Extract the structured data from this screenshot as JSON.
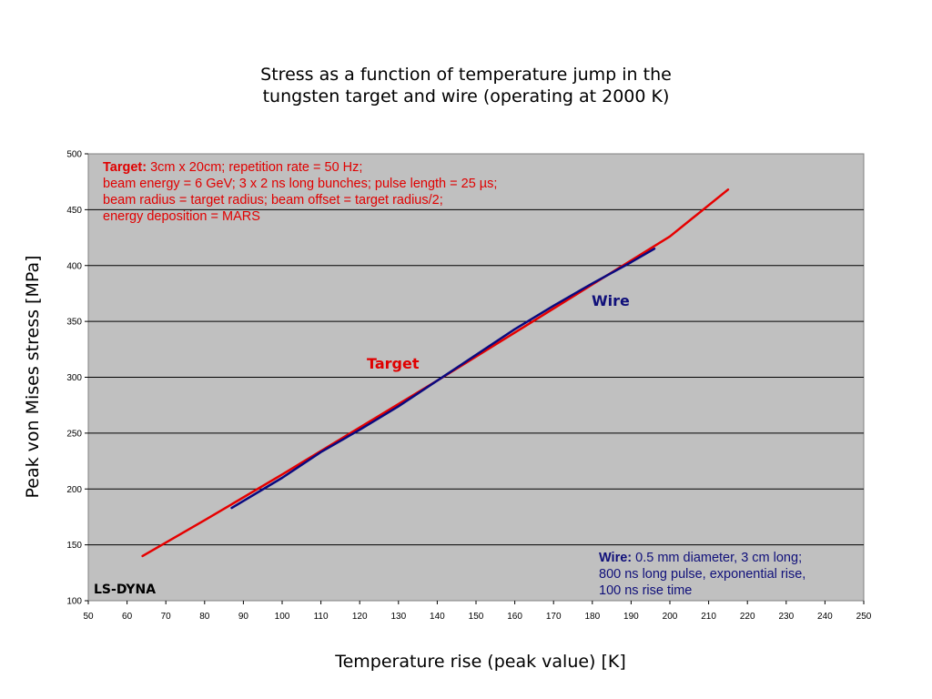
{
  "title": {
    "line1": "Stress as a function of temperature jump in the",
    "line2": "tungsten target and wire (operating at 2000 K)"
  },
  "chart_data": {
    "type": "line",
    "title": "Stress as a function of temperature jump in the tungsten target and wire (operating at 2000 K)",
    "xlabel": "Temperature rise (peak value) [K]",
    "ylabel": "Peak von Mises stress [MPa]",
    "xlim": [
      50,
      250
    ],
    "ylim": [
      100,
      500
    ],
    "x_ticks": [
      50,
      60,
      70,
      80,
      90,
      100,
      110,
      120,
      130,
      140,
      150,
      160,
      170,
      180,
      190,
      200,
      210,
      220,
      230,
      240,
      250
    ],
    "y_ticks": [
      100,
      150,
      200,
      250,
      300,
      350,
      400,
      450,
      500
    ],
    "grid": "horizontal",
    "plot_background": "#c0c0c0",
    "series": [
      {
        "name": "Target",
        "color": "#e60000",
        "x": [
          64,
          80,
          100,
          120,
          140,
          160,
          180,
          200,
          215
        ],
        "y": [
          140,
          172,
          213,
          255,
          297,
          340,
          383,
          426,
          468
        ]
      },
      {
        "name": "Wire",
        "color": "#0a0a80",
        "x": [
          87,
          100,
          110,
          120,
          130,
          140,
          150,
          160,
          170,
          180,
          190,
          196
        ],
        "y": [
          183,
          210,
          233,
          253,
          274,
          297,
          320,
          343,
          364,
          384,
          403,
          415
        ]
      }
    ],
    "annotations": {
      "target_note": {
        "bold": "Target:",
        "lines": [
          "3cm x 20cm;  repetition rate = 50 Hz;",
          "beam energy = 6 GeV; 3 x 2 ns long bunches; pulse length = 25 µs;",
          "beam radius = target radius; beam offset = target radius/2;",
          "energy deposition = MARS"
        ]
      },
      "wire_note": {
        "bold": "Wire:",
        "lines": [
          "0.5 mm diameter, 3 cm long;",
          "800 ns long pulse, exponential rise,",
          "100 ns rise time"
        ]
      },
      "software": "LS-DYNA"
    }
  }
}
